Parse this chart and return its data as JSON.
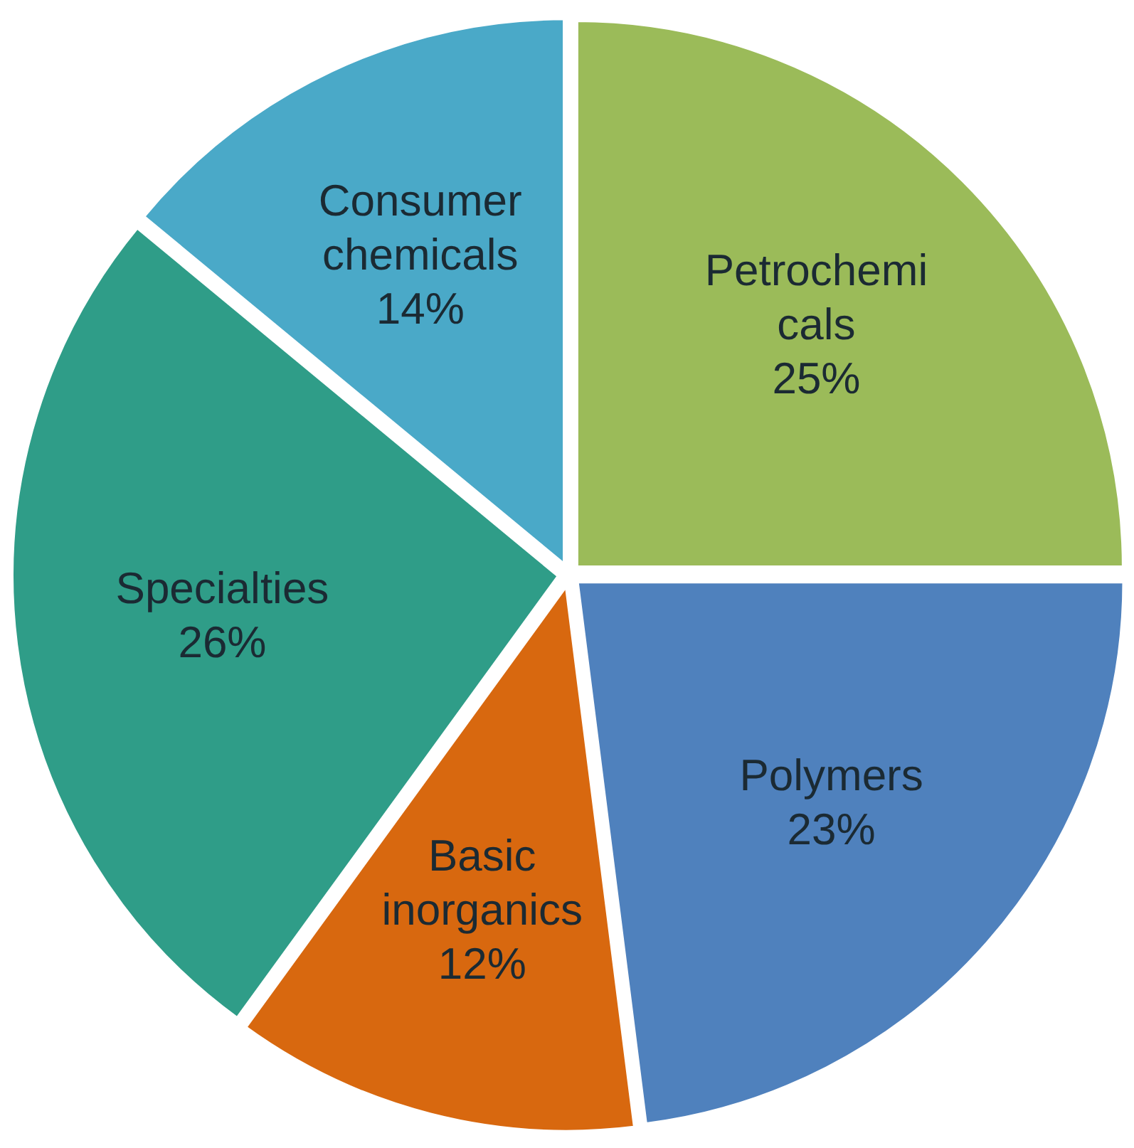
{
  "chart_data": {
    "type": "pie",
    "categories": [
      "Petrochemicals",
      "Polymers",
      "Basic inorganics",
      "Specialties",
      "Consumer chemicals"
    ],
    "values": [
      25,
      23,
      12,
      26,
      14
    ],
    "colors": [
      "#9bbb59",
      "#4f81bd",
      "#d8680f",
      "#2f9d88",
      "#4aa9c8"
    ],
    "value_labels": [
      "25%",
      "23%",
      "12%",
      "26%",
      "14%"
    ],
    "legend": false
  }
}
